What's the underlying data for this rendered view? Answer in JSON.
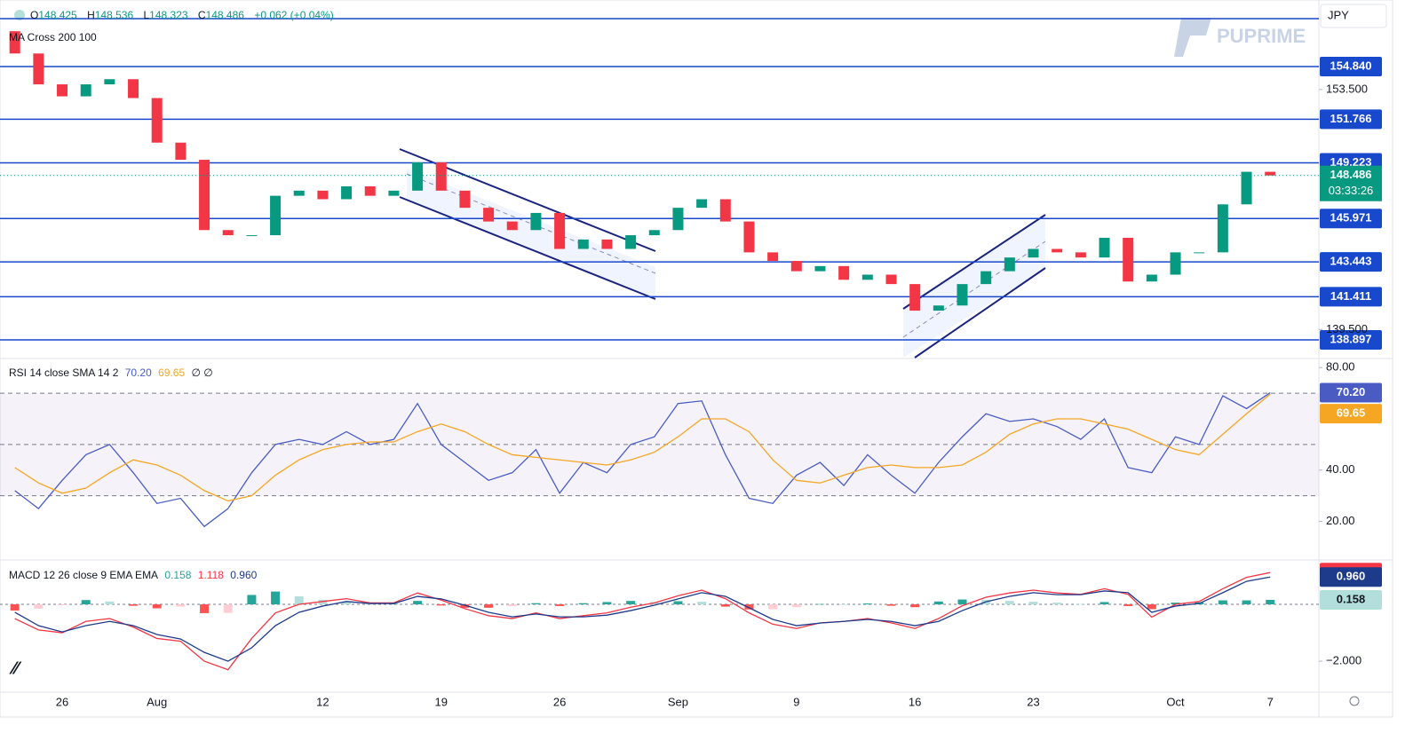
{
  "app": {
    "symbol": "JPY",
    "brand": "PUPRIME"
  },
  "chart_data": [
    {
      "type": "candlestick",
      "indicator": "MA Cross 200 100",
      "ohlc": [
        {
          "label": "O",
          "value": "148.425"
        },
        {
          "label": "H",
          "value": "148.536"
        },
        {
          "label": "L",
          "value": "148.323"
        },
        {
          "label": "C",
          "value": "148.486"
        }
      ],
      "change": "+0.062 (+0.04%)",
      "categories": [
        null,
        null,
        "26",
        null,
        null,
        null,
        "Aug",
        null,
        null,
        null,
        null,
        null,
        null,
        "12",
        null,
        null,
        null,
        null,
        "19",
        null,
        null,
        null,
        null,
        "26",
        null,
        null,
        null,
        null,
        "Sep",
        null,
        null,
        null,
        null,
        "9",
        null,
        null,
        null,
        null,
        "16",
        null,
        null,
        null,
        null,
        "23",
        null,
        null,
        null,
        null,
        null,
        "Oct",
        null,
        null,
        null,
        "7"
      ],
      "open": 156.9,
      "values": [
        155.6,
        153.8,
        153.1,
        153.8,
        154.1,
        153.0,
        150.4,
        149.4,
        145.3,
        145.0,
        145.0,
        147.3,
        147.6,
        147.1,
        147.85,
        147.3,
        147.6,
        149.25,
        147.6,
        146.6,
        145.8,
        145.3,
        146.3,
        144.2,
        144.75,
        144.2,
        145.0,
        145.3,
        146.6,
        147.1,
        145.8,
        144.0,
        143.5,
        142.9,
        143.2,
        142.4,
        142.7,
        142.15,
        140.6,
        140.9,
        142.15,
        142.9,
        143.7,
        144.2,
        144.0,
        143.7,
        144.85,
        142.3,
        142.7,
        144.0,
        144.0,
        146.8,
        148.7,
        148.486
      ],
      "value_labels": [
        null,
        null,
        null,
        null,
        null,
        null,
        null,
        null,
        null,
        null,
        null,
        null,
        null,
        null,
        null,
        null,
        null,
        null,
        null,
        null,
        null,
        null,
        null,
        null,
        null,
        null,
        null,
        null,
        null,
        null,
        null,
        null,
        null,
        null,
        null,
        null,
        null,
        null,
        null,
        null,
        null,
        null,
        null,
        null,
        null,
        null,
        null,
        null,
        null,
        null,
        null,
        null,
        null,
        "148.486"
      ],
      "countdown": "03:33:26",
      "ylim": [
        137.86,
        158.72
      ],
      "yticks": [
        {
          "value": 153.5,
          "label": "153.500"
        },
        {
          "value": 139.5,
          "label": "139.500"
        }
      ],
      "levels": [
        157.63,
        154.84,
        151.766,
        149.223,
        145.971,
        143.443,
        141.411,
        138.897
      ],
      "level_labels": [
        null,
        "154.840",
        "151.766",
        "149.223",
        "145.971",
        "143.443",
        "141.411",
        "138.897"
      ],
      "level_color": "#1848cc",
      "up_color": "#089981",
      "down_color": "#f23645"
    },
    {
      "type": "line",
      "title": "RSI 14 close SMA 14 2",
      "extra": "∅ ∅",
      "series": [
        {
          "color": "#4a5cc4",
          "values": [
            32,
            25,
            36,
            46,
            50,
            39,
            27,
            29,
            18,
            25,
            39,
            50,
            52,
            50,
            55,
            50,
            52,
            66,
            50,
            43,
            36,
            39,
            48,
            31,
            43,
            39,
            50,
            53,
            66,
            67,
            46,
            29,
            27,
            38,
            43,
            34,
            46,
            38,
            31,
            43,
            53,
            62,
            59,
            60,
            57,
            52,
            60,
            41,
            39,
            53,
            50,
            69,
            64,
            70.2
          ],
          "value_labels": [
            null,
            null,
            null,
            null,
            null,
            null,
            null,
            null,
            null,
            null,
            null,
            null,
            null,
            null,
            null,
            null,
            null,
            null,
            null,
            null,
            null,
            null,
            null,
            null,
            null,
            null,
            null,
            null,
            null,
            null,
            null,
            null,
            null,
            null,
            null,
            null,
            null,
            null,
            null,
            null,
            null,
            null,
            null,
            null,
            null,
            null,
            null,
            null,
            null,
            null,
            null,
            null,
            null,
            "70.20"
          ]
        },
        {
          "color": "#f5a623",
          "values": [
            41,
            35,
            31,
            33,
            39,
            44,
            42,
            38,
            32,
            28,
            30,
            38,
            44,
            48,
            50,
            51,
            51,
            55,
            58,
            55,
            50,
            46,
            45,
            44,
            43,
            42,
            44,
            47,
            53,
            60,
            60,
            55,
            44,
            36,
            35,
            38,
            41,
            42,
            41,
            41,
            42,
            47,
            54,
            58,
            60,
            60,
            58,
            56,
            52,
            48,
            46,
            54,
            62,
            69.65
          ],
          "value_labels": [
            null,
            null,
            null,
            null,
            null,
            null,
            null,
            null,
            null,
            null,
            null,
            null,
            null,
            null,
            null,
            null,
            null,
            null,
            null,
            null,
            null,
            null,
            null,
            null,
            null,
            null,
            null,
            null,
            null,
            null,
            null,
            null,
            null,
            null,
            null,
            null,
            null,
            null,
            null,
            null,
            null,
            null,
            null,
            null,
            null,
            null,
            null,
            null,
            null,
            null,
            null,
            null,
            null,
            "69.65"
          ]
        }
      ],
      "ylim": [
        5.3,
        83.2
      ],
      "yticks": [
        {
          "value": 80,
          "label": "80.00"
        },
        {
          "value": 40,
          "label": "40.00"
        },
        {
          "value": 20,
          "label": "20.00"
        }
      ],
      "bands": [
        70,
        50,
        30
      ],
      "band_color": "#7e57c2"
    },
    {
      "type": "macd",
      "title": "MACD 12 26 close 9 EMA EMA",
      "series": [
        {
          "kind": "bar",
          "colors": [
            "#26a69a",
            "#b2dfdb",
            "#ff5252",
            "#ffcdd2"
          ],
          "values": [
            -0.22,
            -0.15,
            -0.03,
            0.15,
            0.1,
            -0.05,
            -0.14,
            -0.08,
            -0.31,
            -0.3,
            0.33,
            0.45,
            0.28,
            0.16,
            0.1,
            0.02,
            0.02,
            0.12,
            -0.04,
            -0.12,
            -0.12,
            -0.06,
            0.04,
            -0.06,
            0.04,
            0.08,
            0.12,
            0.08,
            0.11,
            0.09,
            -0.08,
            -0.18,
            -0.17,
            -0.1,
            0.01,
            0,
            0.03,
            -0.05,
            -0.1,
            0.1,
            0.17,
            0.16,
            0.12,
            0.09,
            0.06,
            0.01,
            0.08,
            -0.06,
            -0.17,
            0.06,
            0.07,
            0.14,
            0.14,
            0.158
          ],
          "value_labels": [
            null,
            null,
            null,
            null,
            null,
            null,
            null,
            null,
            null,
            null,
            null,
            null,
            null,
            null,
            null,
            null,
            null,
            null,
            null,
            null,
            null,
            null,
            null,
            null,
            null,
            null,
            null,
            null,
            null,
            null,
            null,
            null,
            null,
            null,
            null,
            null,
            null,
            null,
            null,
            null,
            null,
            null,
            null,
            null,
            null,
            null,
            null,
            null,
            null,
            null,
            null,
            null,
            null,
            "0.158"
          ]
        },
        {
          "kind": "line",
          "color": "#f23645",
          "values": [
            -0.5,
            -0.9,
            -1.0,
            -0.6,
            -0.5,
            -0.8,
            -1.2,
            -1.3,
            -2.0,
            -2.3,
            -1.2,
            -0.3,
            0.0,
            0.1,
            0.2,
            0.05,
            0.05,
            0.4,
            0.15,
            -0.15,
            -0.4,
            -0.5,
            -0.3,
            -0.5,
            -0.4,
            -0.3,
            -0.1,
            0.05,
            0.3,
            0.5,
            0.2,
            -0.3,
            -0.7,
            -0.85,
            -0.65,
            -0.6,
            -0.5,
            -0.65,
            -0.85,
            -0.5,
            -0.05,
            0.25,
            0.4,
            0.5,
            0.4,
            0.35,
            0.55,
            0.35,
            -0.45,
            0.0,
            0.1,
            0.55,
            0.95,
            1.118
          ],
          "value_labels": [
            null,
            null,
            null,
            null,
            null,
            null,
            null,
            null,
            null,
            null,
            null,
            null,
            null,
            null,
            null,
            null,
            null,
            null,
            null,
            null,
            null,
            null,
            null,
            null,
            null,
            null,
            null,
            null,
            null,
            null,
            null,
            null,
            null,
            null,
            null,
            null,
            null,
            null,
            null,
            null,
            null,
            null,
            null,
            null,
            null,
            null,
            null,
            null,
            null,
            null,
            null,
            null,
            null,
            "1.118"
          ]
        },
        {
          "kind": "line",
          "color": "#1e3a8a",
          "values": [
            -0.28,
            -0.75,
            -0.97,
            -0.75,
            -0.6,
            -0.75,
            -1.06,
            -1.22,
            -1.69,
            -2.0,
            -1.53,
            -0.75,
            -0.28,
            -0.06,
            0.1,
            0.03,
            0.03,
            0.28,
            0.19,
            -0.03,
            -0.28,
            -0.44,
            -0.34,
            -0.44,
            -0.44,
            -0.38,
            -0.22,
            -0.03,
            0.19,
            0.41,
            0.28,
            -0.12,
            -0.53,
            -0.75,
            -0.66,
            -0.6,
            -0.53,
            -0.6,
            -0.75,
            -0.6,
            -0.22,
            0.09,
            0.28,
            0.41,
            0.34,
            0.34,
            0.47,
            0.41,
            -0.28,
            -0.06,
            0.03,
            0.41,
            0.81,
            0.96
          ],
          "value_labels": [
            null,
            null,
            null,
            null,
            null,
            null,
            null,
            null,
            null,
            null,
            null,
            null,
            null,
            null,
            null,
            null,
            null,
            null,
            null,
            null,
            null,
            null,
            null,
            null,
            null,
            null,
            null,
            null,
            null,
            null,
            null,
            null,
            null,
            null,
            null,
            null,
            null,
            null,
            null,
            null,
            null,
            null,
            null,
            null,
            null,
            null,
            null,
            null,
            null,
            null,
            null,
            null,
            null,
            "0.960"
          ]
        }
      ],
      "ylim": [
        -3.09,
        1.53
      ],
      "yticks": [
        {
          "value": -2,
          "label": "−2.000"
        }
      ]
    }
  ]
}
